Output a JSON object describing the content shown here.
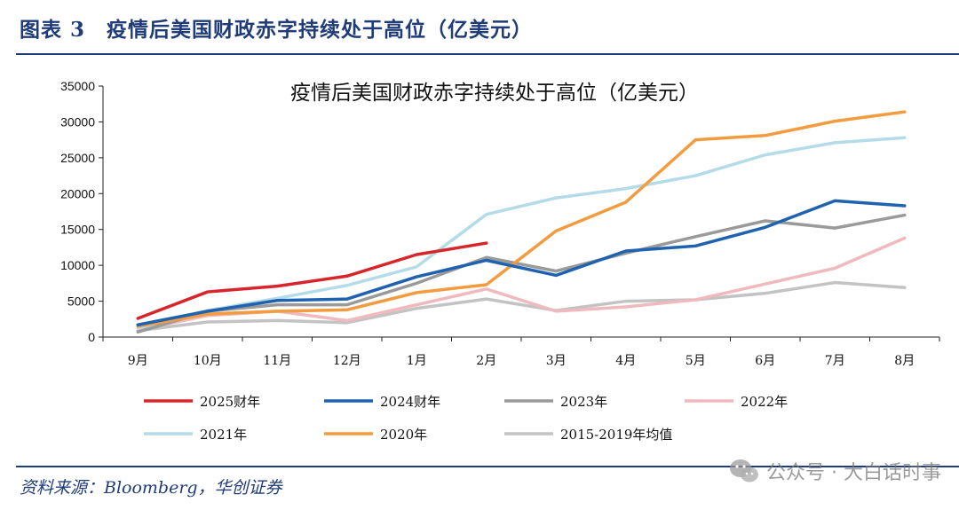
{
  "header": {
    "title": "图表 3　疫情后美国财政赤字持续处于高位（亿美元）"
  },
  "source": "资料来源：Bloomberg，华创证券",
  "watermark": {
    "icon": "wechat-icon",
    "text": "公众号 · 大白话时事"
  },
  "chart_data": {
    "type": "line",
    "title": "疫情后美国财政赤字持续处于高位（亿美元）",
    "xlabel": "",
    "ylabel": "",
    "categories": [
      "9月",
      "10月",
      "11月",
      "12月",
      "1月",
      "2月",
      "3月",
      "4月",
      "5月",
      "6月",
      "7月",
      "8月"
    ],
    "ylim": [
      0,
      35000
    ],
    "yticks": [
      0,
      5000,
      10000,
      15000,
      20000,
      25000,
      30000,
      35000
    ],
    "grid": false,
    "legend_position": "bottom",
    "series": [
      {
        "name": "2025财年",
        "color": "#d7262b",
        "values": [
          2600,
          6300,
          7100,
          8500,
          11500,
          13100,
          null,
          null,
          null,
          null,
          null,
          null
        ]
      },
      {
        "name": "2024财年",
        "color": "#1f63b0",
        "values": [
          1700,
          3600,
          5100,
          5300,
          8400,
          10700,
          8600,
          12000,
          12700,
          15300,
          19000,
          18300
        ]
      },
      {
        "name": "2023年",
        "color": "#9a9a9a",
        "values": [
          700,
          3600,
          4500,
          4500,
          7500,
          11100,
          9200,
          11700,
          14000,
          16200,
          15200,
          17000
        ]
      },
      {
        "name": "2022年",
        "color": "#f0b9bd",
        "values": [
          1000,
          3000,
          3600,
          2300,
          4500,
          6700,
          3600,
          4200,
          5200,
          7400,
          9600,
          13800
        ]
      },
      {
        "name": "2021年",
        "color": "#b4dbe8",
        "values": [
          1200,
          3700,
          5400,
          7200,
          9800,
          17100,
          19400,
          20700,
          22500,
          25400,
          27100,
          27800
        ]
      },
      {
        "name": "2020年",
        "color": "#f39b3f",
        "values": [
          1500,
          3200,
          3600,
          3800,
          6200,
          7300,
          14800,
          18800,
          27500,
          28100,
          30100,
          31400
        ]
      },
      {
        "name": "2015-2019年均值",
        "color": "#c3c3c3",
        "values": [
          900,
          2100,
          2300,
          2000,
          4000,
          5300,
          3700,
          5000,
          5200,
          6100,
          7600,
          6900
        ]
      }
    ]
  }
}
